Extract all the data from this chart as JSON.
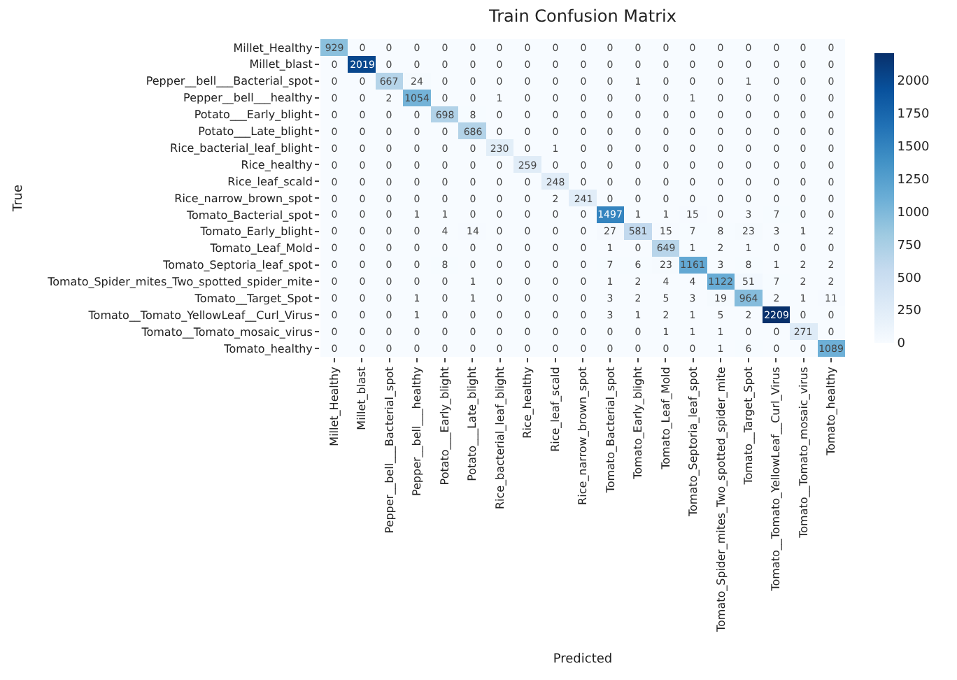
{
  "chart_data": {
    "type": "heatmap",
    "title": "Train Confusion Matrix",
    "xlabel": "Predicted",
    "ylabel": "True",
    "clabel": null,
    "categories": [
      "Millet_Healthy",
      "Millet_blast",
      "Pepper__bell___Bacterial_spot",
      "Pepper__bell___healthy",
      "Potato___Early_blight",
      "Potato___Late_blight",
      "Rice_bacterial_leaf_blight",
      "Rice_healthy",
      "Rice_leaf_scald",
      "Rice_narrow_brown_spot",
      "Tomato_Bacterial_spot",
      "Tomato_Early_blight",
      "Tomato_Leaf_Mold",
      "Tomato_Septoria_leaf_spot",
      "Tomato_Spider_mites_Two_spotted_spider_mite",
      "Tomato__Target_Spot",
      "Tomato__Tomato_YellowLeaf__Curl_Virus",
      "Tomato__Tomato_mosaic_virus",
      "Tomato_healthy"
    ],
    "y_categories": [
      "Millet_Healthy",
      "Millet_blast",
      "Pepper__bell___Bacterial_spot",
      "Pepper__bell___healthy",
      "Potato___Early_blight",
      "Potato___Late_blight",
      "Rice_bacterial_leaf_blight",
      "Rice_healthy",
      "Rice_leaf_scald",
      "Rice_narrow_brown_spot",
      "Tomato_Bacterial_spot",
      "Tomato_Early_blight",
      "Tomato_Leaf_Mold",
      "Tomato_Septoria_leaf_spot",
      "Tomato_Spider_mites_Two_spotted_spider_mite",
      "Tomato__Target_Spot",
      "Tomato__Tomato_YellowLeaf__Curl_Virus",
      "Tomato__Tomato_mosaic_virus",
      "Tomato_healthy"
    ],
    "cells": [
      [
        929,
        0,
        0,
        0,
        0,
        0,
        0,
        0,
        0,
        0,
        0,
        0,
        0,
        0,
        0,
        0,
        0,
        0,
        0
      ],
      [
        0,
        2019,
        0,
        0,
        0,
        0,
        0,
        0,
        0,
        0,
        0,
        0,
        0,
        0,
        0,
        0,
        0,
        0,
        0
      ],
      [
        0,
        0,
        667,
        24,
        0,
        0,
        0,
        0,
        0,
        0,
        0,
        1,
        0,
        0,
        0,
        1,
        0,
        0,
        0
      ],
      [
        0,
        0,
        2,
        1054,
        0,
        0,
        1,
        0,
        0,
        0,
        0,
        0,
        0,
        1,
        0,
        0,
        0,
        0,
        0
      ],
      [
        0,
        0,
        0,
        0,
        698,
        8,
        0,
        0,
        0,
        0,
        0,
        0,
        0,
        0,
        0,
        0,
        0,
        0,
        0
      ],
      [
        0,
        0,
        0,
        0,
        0,
        686,
        0,
        0,
        0,
        0,
        0,
        0,
        0,
        0,
        0,
        0,
        0,
        0,
        0
      ],
      [
        0,
        0,
        0,
        0,
        0,
        0,
        230,
        0,
        1,
        0,
        0,
        0,
        0,
        0,
        0,
        0,
        0,
        0,
        0
      ],
      [
        0,
        0,
        0,
        0,
        0,
        0,
        0,
        259,
        0,
        0,
        0,
        0,
        0,
        0,
        0,
        0,
        0,
        0,
        0
      ],
      [
        0,
        0,
        0,
        0,
        0,
        0,
        0,
        0,
        248,
        0,
        0,
        0,
        0,
        0,
        0,
        0,
        0,
        0,
        0
      ],
      [
        0,
        0,
        0,
        0,
        0,
        0,
        0,
        0,
        2,
        241,
        0,
        0,
        0,
        0,
        0,
        0,
        0,
        0,
        0
      ],
      [
        0,
        0,
        0,
        1,
        1,
        0,
        0,
        0,
        0,
        0,
        1497,
        1,
        1,
        15,
        0,
        3,
        7,
        0,
        0
      ],
      [
        0,
        0,
        0,
        0,
        4,
        14,
        0,
        0,
        0,
        0,
        27,
        581,
        15,
        7,
        8,
        23,
        3,
        1,
        2
      ],
      [
        0,
        0,
        0,
        0,
        0,
        0,
        0,
        0,
        0,
        0,
        1,
        0,
        649,
        1,
        2,
        1,
        0,
        0,
        0
      ],
      [
        0,
        0,
        0,
        0,
        8,
        0,
        0,
        0,
        0,
        0,
        7,
        6,
        23,
        1161,
        3,
        8,
        1,
        2,
        2
      ],
      [
        0,
        0,
        0,
        0,
        0,
        1,
        0,
        0,
        0,
        0,
        1,
        2,
        4,
        4,
        1122,
        51,
        7,
        2,
        2
      ],
      [
        0,
        0,
        0,
        1,
        0,
        1,
        0,
        0,
        0,
        0,
        3,
        2,
        5,
        3,
        19,
        964,
        2,
        1,
        11
      ],
      [
        0,
        0,
        0,
        1,
        0,
        0,
        0,
        0,
        0,
        0,
        3,
        1,
        2,
        1,
        5,
        2,
        2209,
        0,
        0
      ],
      [
        0,
        0,
        0,
        0,
        0,
        0,
        0,
        0,
        0,
        0,
        0,
        0,
        1,
        1,
        1,
        0,
        0,
        271,
        0
      ],
      [
        0,
        0,
        0,
        0,
        0,
        0,
        0,
        0,
        0,
        0,
        0,
        0,
        0,
        0,
        1,
        6,
        0,
        0,
        1089
      ]
    ],
    "data_labels": true,
    "clim": [
      0,
      2209
    ],
    "cticks": [
      0,
      250,
      500,
      750,
      1000,
      1250,
      1500,
      1750,
      2000
    ]
  }
}
